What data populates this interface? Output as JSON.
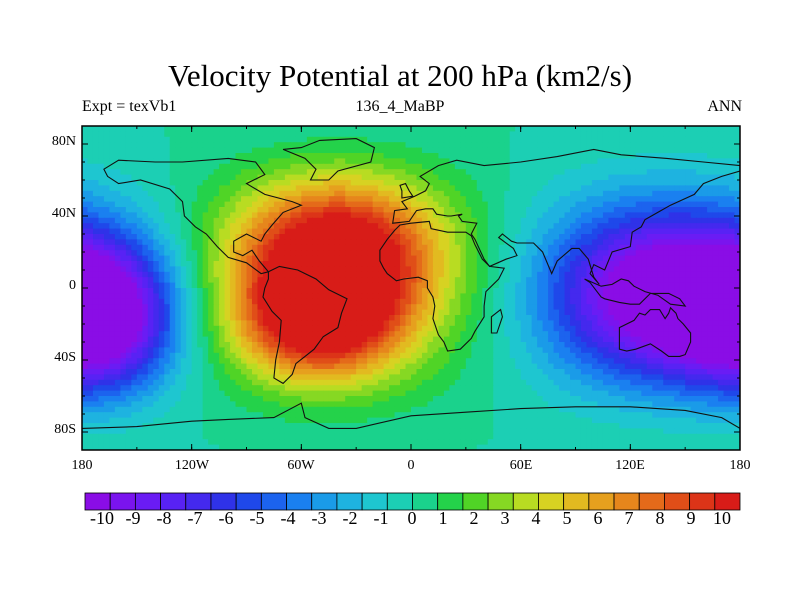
{
  "title": "Velocity Potential at 200 hPa (km2/s)",
  "left_string": "Expt = texVb1",
  "center_string": "136_4_MaBP",
  "right_string": "ANN",
  "lat_labels": [
    "80N",
    "40N",
    "0",
    "40S",
    "80S"
  ],
  "lon_labels": [
    "180",
    "120W",
    "60W",
    "0",
    "60E",
    "120E",
    "180"
  ],
  "colorbar": {
    "min": -10,
    "max": 10,
    "labels": [
      "-10",
      "-9",
      "-8",
      "-7",
      "-6",
      "-5",
      "-4",
      "-3",
      "-2",
      "-1",
      "0",
      "1",
      "2",
      "3",
      "4",
      "5",
      "6",
      "7",
      "8",
      "9",
      "10"
    ],
    "colors": [
      "#8a0de6",
      "#7a14ee",
      "#6a1cf4",
      "#5822f4",
      "#4429ee",
      "#2f32e8",
      "#1f48ea",
      "#1c63ee",
      "#1a80f0",
      "#1a9be8",
      "#1eb3e0",
      "#1ec6d0",
      "#1ccfb4",
      "#1ad28c",
      "#24d24a",
      "#50d426",
      "#86d823",
      "#b8dc22",
      "#d7d222",
      "#e2ba20",
      "#e6a01e",
      "#e6861c",
      "#e46a1a",
      "#e04e18",
      "#dc3418",
      "#d81c18"
    ]
  },
  "chart_data": {
    "type": "heatmap",
    "title": "Velocity Potential at 200 hPa (km2/s)",
    "variable": "velocity potential",
    "units": "km2/s",
    "level": "200 hPa",
    "experiment": "texVb1",
    "case": "136_4_MaBP",
    "season": "ANN",
    "xlim": [
      -180,
      180
    ],
    "ylim": [
      -90,
      90
    ],
    "color_range": [
      -10,
      10
    ],
    "features": [
      {
        "name": "max-north-atlantic",
        "lon": -40,
        "lat": 25,
        "value": 9.5
      },
      {
        "name": "max-south-atlantic",
        "lon": -50,
        "lat": -20,
        "value": 9.0
      },
      {
        "name": "min-west-pacific",
        "lon": 140,
        "lat": -5,
        "value": -9.0
      },
      {
        "name": "min-east-pacific",
        "lon": -170,
        "lat": -20,
        "value": -9.5
      }
    ]
  }
}
